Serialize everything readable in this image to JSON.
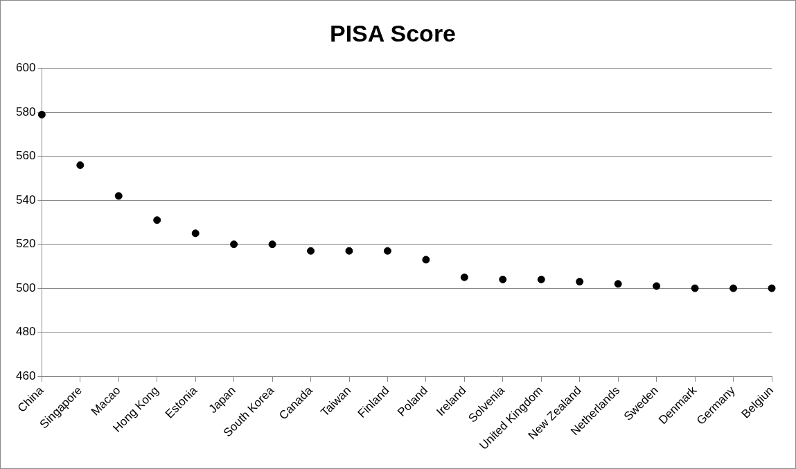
{
  "chart_data": {
    "type": "scatter",
    "title": "PISA Score",
    "categories": [
      "China",
      "Singapore",
      "Macao",
      "Hong Kong",
      "Estonia",
      "Japan",
      "South Korea",
      "Canada",
      "Taiwan",
      "Finland",
      "Poland",
      "Ireland",
      "Solvenia",
      "United Kingdom",
      "New Zealand",
      "Netherlands",
      "Sweden",
      "Denmark",
      "Germany",
      "Belgiun"
    ],
    "values": [
      579,
      556,
      542,
      531,
      525,
      520,
      520,
      517,
      517,
      517,
      513,
      505,
      504,
      504,
      503,
      502,
      501,
      500,
      500,
      500
    ],
    "color": "#000000",
    "marker": "circle",
    "ylim": [
      460,
      600
    ],
    "yticks": [
      460,
      480,
      500,
      520,
      540,
      560,
      580,
      600
    ],
    "grid": "y",
    "legend": false
  }
}
